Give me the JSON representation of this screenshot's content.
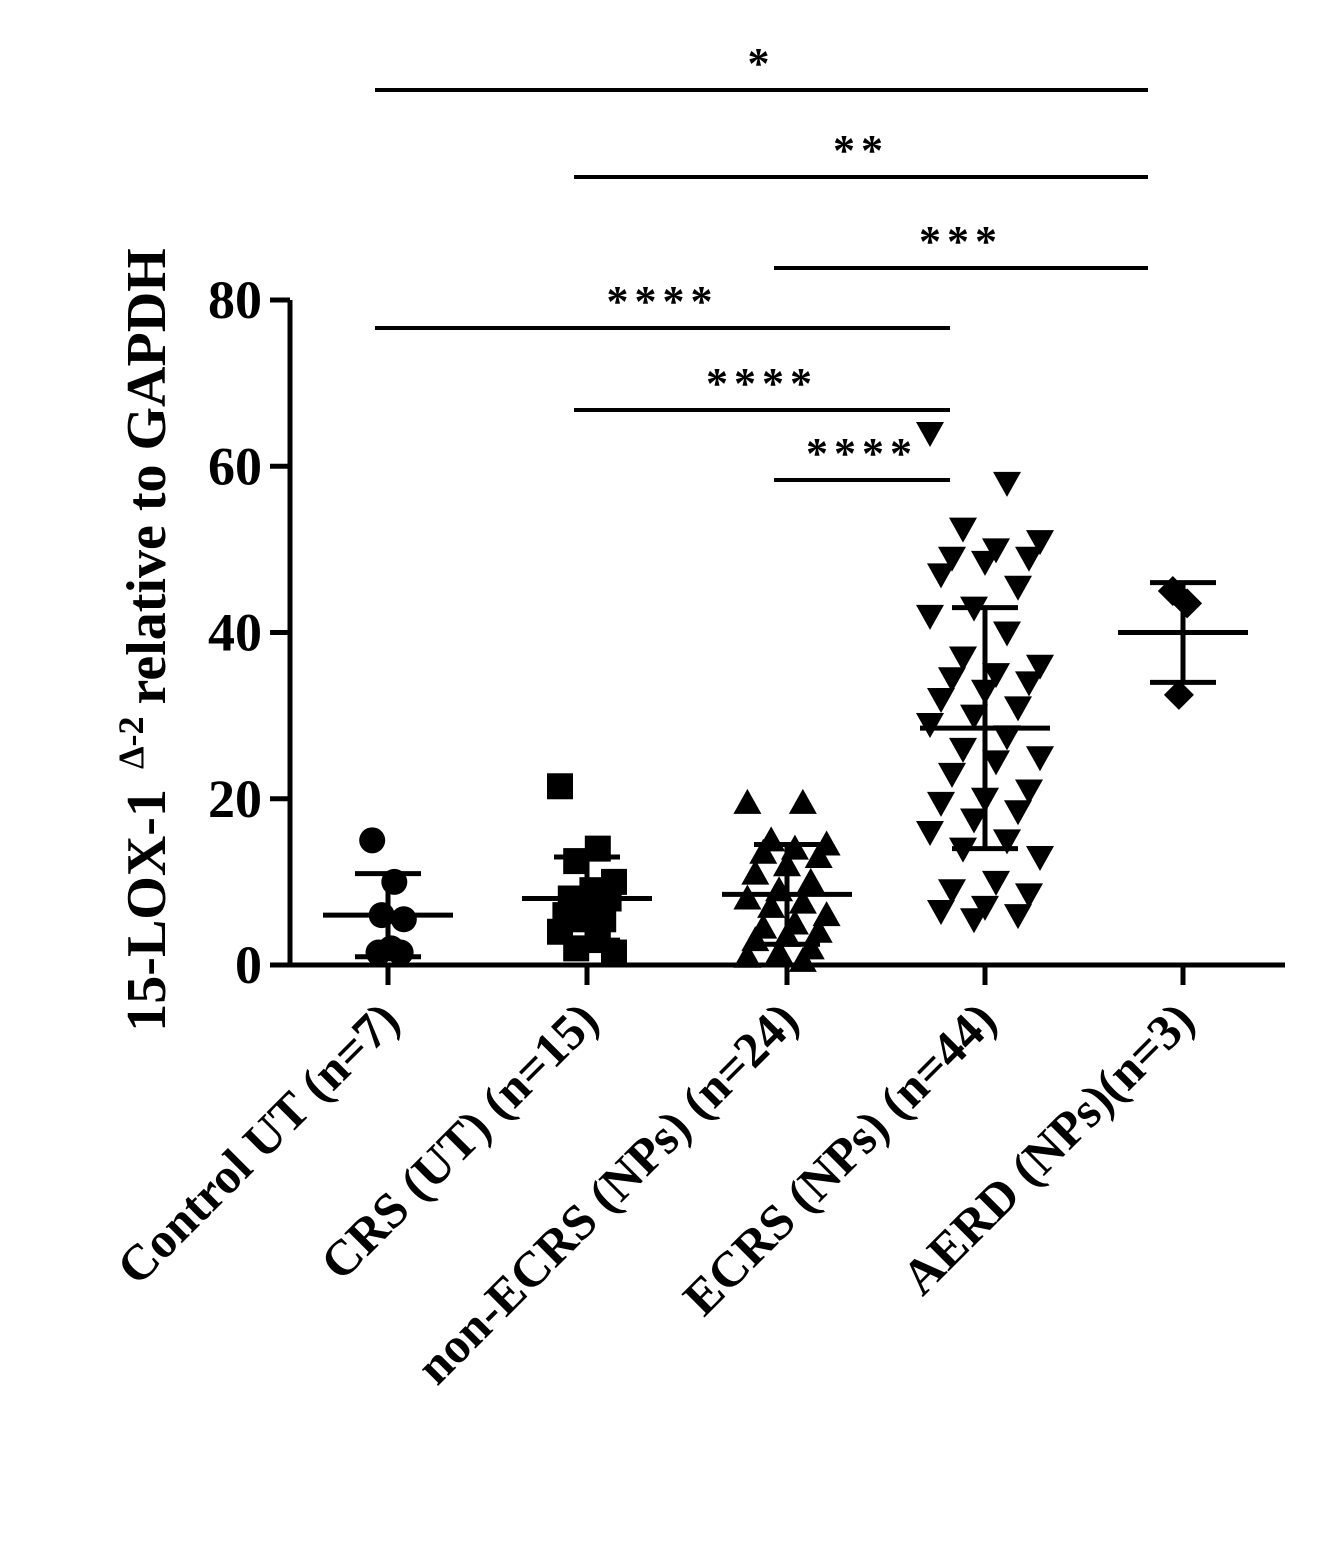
{
  "chart_data": {
    "type": "dot",
    "y_label": {
      "main": "15-LOX-1",
      "sup": "Δ-2",
      "rest": "relative to GAPDH"
    },
    "ylim": [
      0,
      80
    ],
    "yticks": [
      0,
      20,
      40,
      60,
      80
    ],
    "color": "#000000",
    "series": [
      {
        "name": "Control UT (n=7)",
        "marker": "circle",
        "values": [
          15,
          10,
          6,
          5.5,
          2,
          1.5,
          1.5
        ],
        "mean": 6,
        "sd": 5
      },
      {
        "name": "CRS (UT) (n=15)",
        "marker": "square",
        "values": [
          21.5,
          14,
          12.5,
          10,
          9,
          8,
          8,
          7,
          6,
          5.5,
          5.5,
          4,
          3,
          2,
          1.5
        ],
        "mean": 8,
        "sd": 5
      },
      {
        "name": "non-ECRS (NPs) (n=24)",
        "marker": "triangle-up",
        "values": [
          19.5,
          19.5,
          15,
          14.5,
          14,
          13.5,
          13,
          12,
          11,
          10,
          9,
          8,
          7.5,
          7,
          6,
          5,
          4.5,
          4,
          3.5,
          3,
          2,
          1.5,
          1,
          0.5
        ],
        "mean": 8.5,
        "sd": 6
      },
      {
        "name": "ECRS (NPs) (n=44)",
        "marker": "triangle-down",
        "values": [
          64,
          58,
          52.5,
          51,
          50,
          49,
          49,
          48.5,
          47,
          45.5,
          43,
          42,
          40,
          37,
          36,
          35,
          34.5,
          34,
          33,
          32,
          31,
          30,
          29,
          27.5,
          26,
          25,
          24.5,
          23,
          21,
          20,
          19.5,
          18.5,
          17.5,
          16,
          15,
          14,
          13,
          10,
          9,
          8.5,
          7,
          6.5,
          6,
          5.5
        ],
        "mean": 28.5,
        "sd": 14.5
      },
      {
        "name": "AERD (NPs)(n=3)",
        "marker": "diamond",
        "values": [
          45,
          43.5,
          32.5
        ],
        "mean": 40,
        "sd": 6
      }
    ],
    "comparisons": [
      {
        "label": "*",
        "groups": [
          0,
          4
        ]
      },
      {
        "label": "**",
        "groups": [
          1,
          4
        ]
      },
      {
        "label": "***",
        "groups": [
          2,
          4
        ]
      },
      {
        "label": "****",
        "groups": [
          0,
          3
        ]
      },
      {
        "label": "****",
        "groups": [
          1,
          3
        ]
      },
      {
        "label": "****",
        "groups": [
          2,
          3
        ]
      }
    ]
  }
}
